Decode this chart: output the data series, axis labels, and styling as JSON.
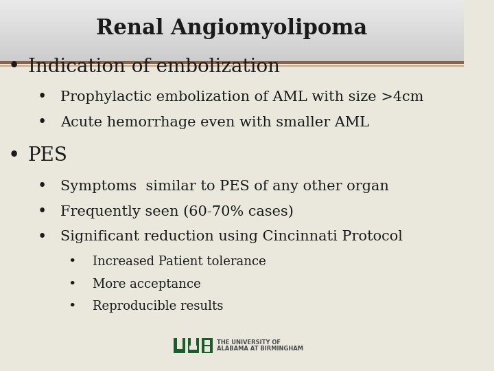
{
  "title": "Renal Angiomyolipoma",
  "title_fontsize": 22,
  "title_font": "serif",
  "header_bg_top": "#e8e8e8",
  "header_bg_bottom": "#d0d0d0",
  "body_bg": "#eae8dc",
  "separator_color_top": "#8B6347",
  "separator_color_bottom": "#c8a882",
  "text_color": "#1a1a1a",
  "bullet_color": "#1a1a1a",
  "uab_green": "#1a5c2a",
  "content": [
    {
      "level": 0,
      "text": "Indication of embolization",
      "fontsize": 20
    },
    {
      "level": 1,
      "text": "Prophylactic embolization of AML with size >4cm",
      "fontsize": 15
    },
    {
      "level": 1,
      "text": "Acute hemorrhage even with smaller AML",
      "fontsize": 15
    },
    {
      "level": 0,
      "text": "PES",
      "fontsize": 20
    },
    {
      "level": 1,
      "text": "Symptoms  similar to PES of any other organ",
      "fontsize": 15
    },
    {
      "level": 1,
      "text": "Frequently seen (60-70% cases)",
      "fontsize": 15
    },
    {
      "level": 1,
      "text": "Significant reduction using Cincinnati Protocol",
      "fontsize": 15
    },
    {
      "level": 2,
      "text": "Increased Patient tolerance",
      "fontsize": 13
    },
    {
      "level": 2,
      "text": "More acceptance",
      "fontsize": 13
    },
    {
      "level": 2,
      "text": "Reproducible results",
      "fontsize": 13
    }
  ],
  "uab_text1": "THE UNIVERSITY OF",
  "uab_text2": "ALABAMA AT BIRMINGHAM"
}
